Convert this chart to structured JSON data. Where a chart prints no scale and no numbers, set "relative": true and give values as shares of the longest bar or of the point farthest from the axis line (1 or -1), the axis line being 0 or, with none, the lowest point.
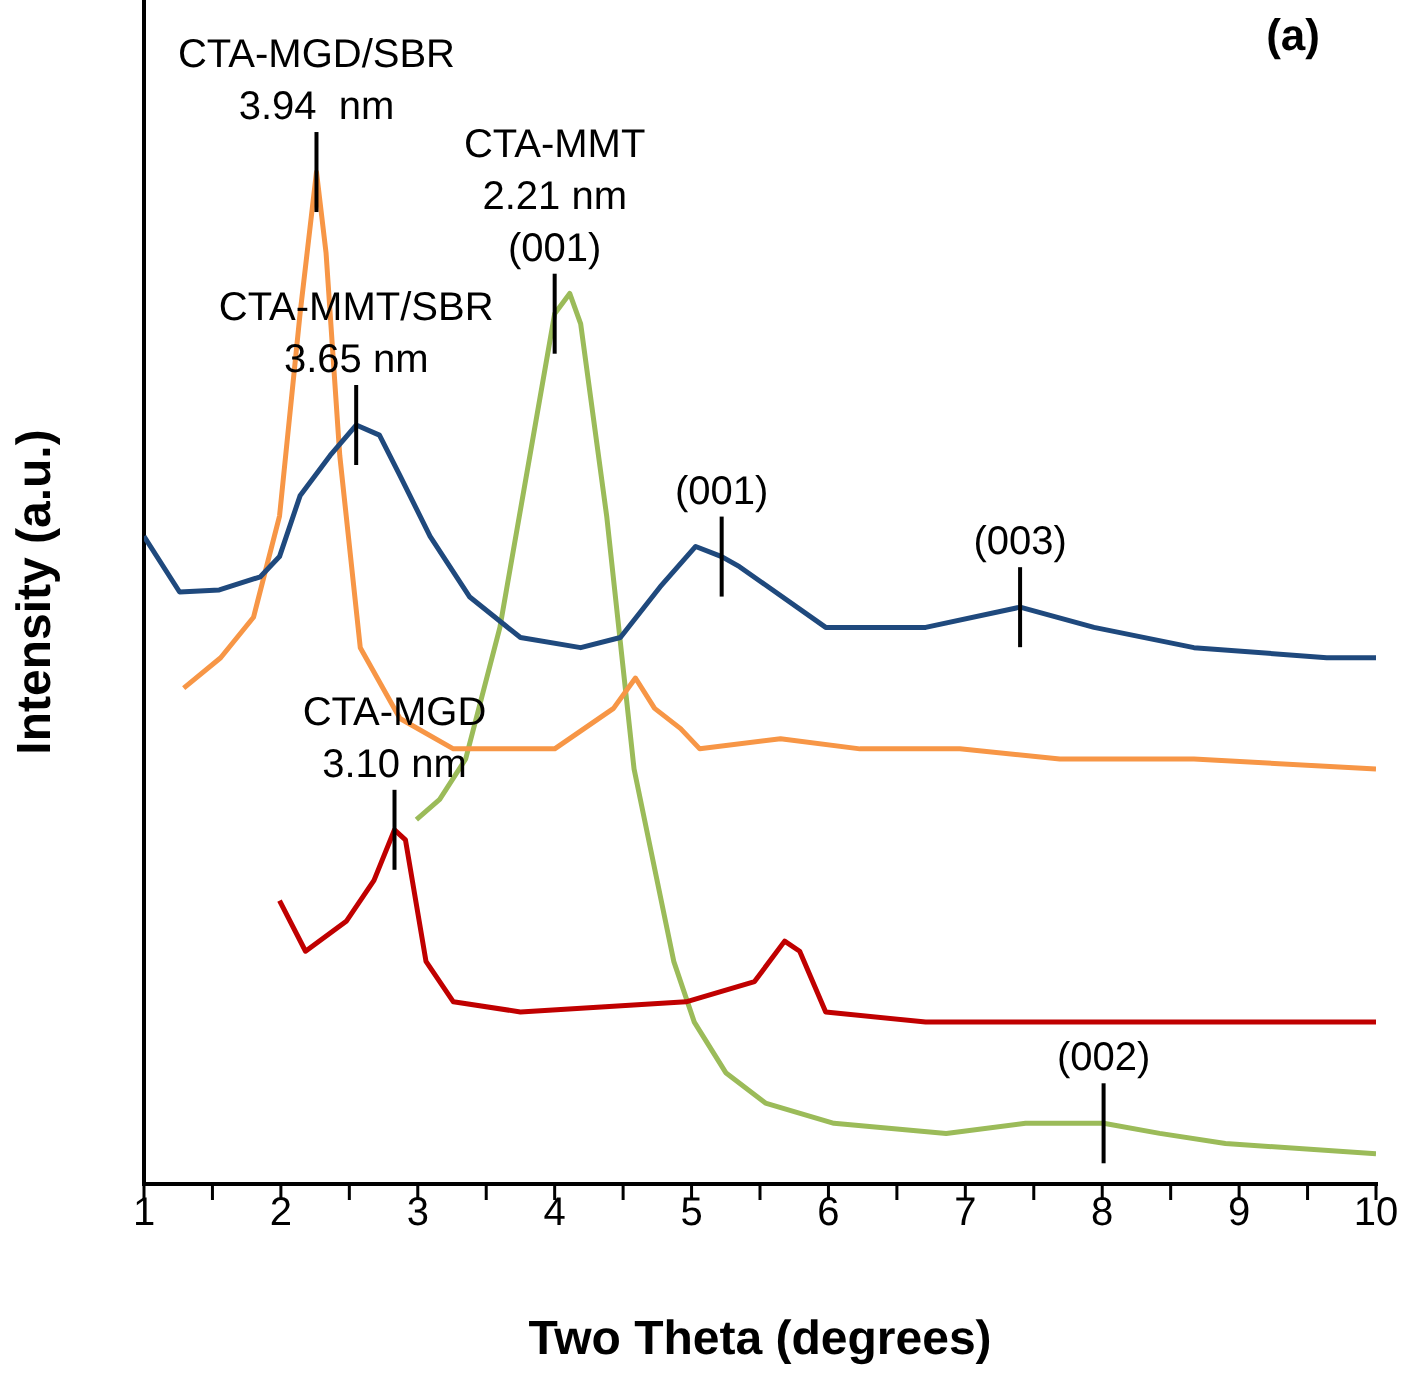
{
  "chart_data": {
    "type": "line",
    "relative": true,
    "xlabel": "Two Theta (degrees)",
    "ylabel": "Intensity (a.u.)",
    "xlim": [
      1,
      10
    ],
    "xticks": [
      1,
      {
        "value": 1.5,
        "label": null
      },
      2,
      {
        "value": 2.5,
        "label": null
      },
      3,
      {
        "value": 3.5,
        "label": null
      },
      4,
      {
        "value": 4.5,
        "label": null
      },
      5,
      {
        "value": 5.5,
        "label": null
      },
      6,
      {
        "value": 6.5,
        "label": null
      },
      7,
      {
        "value": 7.5,
        "label": null
      },
      8,
      {
        "value": 8.5,
        "label": null
      },
      9,
      {
        "value": 9.5,
        "label": null
      },
      10
    ],
    "grid": false,
    "legend": false,
    "marker": "none",
    "line_style": "solid",
    "series": [
      {
        "color": "#1f497d",
        "x": [
          1.0,
          1.26,
          1.55,
          1.85,
          1.99,
          2.14,
          2.36,
          2.55,
          2.72,
          2.87,
          3.09,
          3.38,
          3.75,
          4.19,
          4.48,
          4.77,
          5.03,
          5.22,
          5.35,
          5.98,
          6.71,
          7.4,
          7.94,
          8.67,
          9.64,
          10.0
        ],
        "values": [
          0.64,
          0.585,
          0.587,
          0.6,
          0.62,
          0.68,
          0.72,
          0.75,
          0.74,
          0.7,
          0.64,
          0.58,
          0.54,
          0.53,
          0.54,
          0.59,
          0.63,
          0.62,
          0.61,
          0.55,
          0.55,
          0.57,
          0.55,
          0.53,
          0.52,
          0.52
        ]
      },
      {
        "color": "#f79646",
        "x": [
          1.29,
          1.56,
          1.8,
          1.99,
          2.14,
          2.26,
          2.33,
          2.43,
          2.58,
          2.87,
          3.26,
          4.0,
          4.43,
          4.59,
          4.73,
          4.92,
          5.06,
          5.65,
          6.23,
          6.96,
          7.69,
          8.67,
          10.0
        ],
        "values": [
          0.49,
          0.52,
          0.56,
          0.66,
          0.86,
          1.0,
          0.92,
          0.72,
          0.53,
          0.46,
          0.43,
          0.43,
          0.47,
          0.5,
          0.47,
          0.45,
          0.43,
          0.44,
          0.43,
          0.43,
          0.42,
          0.42,
          0.41
        ]
      },
      {
        "color": "#c00000",
        "x": [
          1.99,
          2.18,
          2.48,
          2.68,
          2.83,
          2.91,
          3.06,
          3.26,
          3.75,
          4.96,
          5.46,
          5.68,
          5.79,
          5.98,
          6.71,
          8.17,
          10.0
        ],
        "values": [
          0.28,
          0.23,
          0.26,
          0.3,
          0.35,
          0.34,
          0.22,
          0.18,
          0.17,
          0.18,
          0.2,
          0.24,
          0.23,
          0.17,
          0.16,
          0.16,
          0.16
        ]
      },
      {
        "color": "#9bbb59",
        "x": [
          2.99,
          3.16,
          3.35,
          3.6,
          4.0,
          4.11,
          4.19,
          4.38,
          4.58,
          4.87,
          5.02,
          5.25,
          5.54,
          6.04,
          6.86,
          7.44,
          8.01,
          8.42,
          8.9,
          10.0
        ],
        "values": [
          0.36,
          0.38,
          0.42,
          0.55,
          0.86,
          0.88,
          0.85,
          0.66,
          0.41,
          0.22,
          0.16,
          0.11,
          0.08,
          0.06,
          0.05,
          0.06,
          0.06,
          0.05,
          0.04,
          0.03
        ]
      }
    ],
    "annotations": [
      "(a)",
      {
        "text": "CTA-MGD/SBR\n3.94  nm",
        "x": 2.26,
        "y": 1.0
      },
      {
        "text": "CTA-MMT\n2.21 nm\n(001)",
        "x": 4.0,
        "y": 0.86
      },
      {
        "text": "CTA-MMT/SBR\n3.65 nm",
        "x": 2.55,
        "y": 0.75
      },
      {
        "text": "(001)",
        "x": 5.22,
        "y": 0.62
      },
      {
        "text": "(003)",
        "x": 7.4,
        "y": 0.57
      },
      {
        "text": "CTA-MGD\n3.10 nm",
        "x": 2.83,
        "y": 0.35
      },
      {
        "text": "(002)",
        "x": 8.01,
        "y": 0.06
      }
    ]
  }
}
